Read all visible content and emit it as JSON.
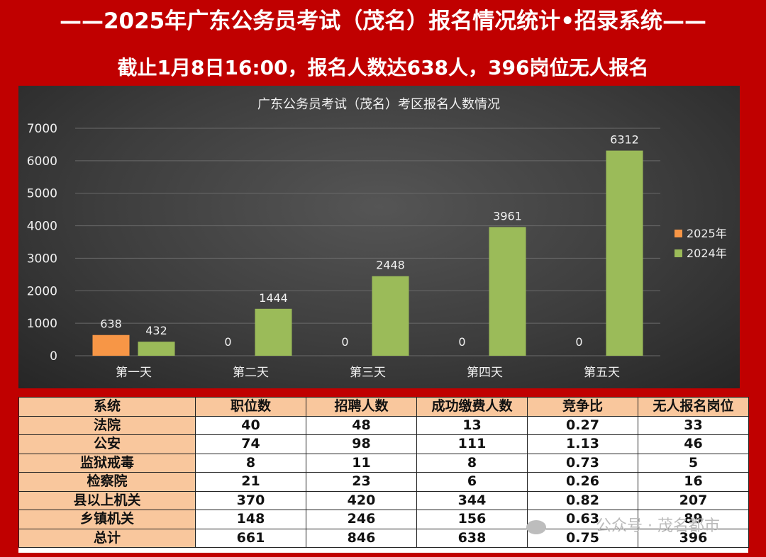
{
  "header": {
    "title": "——2025年广东公务员考试（茂名）报名情况统计•招录系统——",
    "subtitle": "截止1月8日16:00，报名人数达638人，396岗位无人报名"
  },
  "chart_data": {
    "type": "bar",
    "title": "广东公务员考试（茂名）考区报名人数情况",
    "categories": [
      "第一天",
      "第二天",
      "第三天",
      "第四天",
      "第五天"
    ],
    "series": [
      {
        "name": "2025年",
        "values": [
          638,
          0,
          0,
          0,
          0
        ],
        "color": "#f79646"
      },
      {
        "name": "2024年",
        "values": [
          432,
          1444,
          2448,
          3961,
          6312
        ],
        "color": "#9bbb59"
      }
    ],
    "ylim": [
      0,
      7000
    ],
    "yticks": [
      0,
      1000,
      2000,
      3000,
      4000,
      5000,
      6000,
      7000
    ],
    "grid": true,
    "legend": "right"
  },
  "table": {
    "headers": [
      "系统",
      "职位数",
      "招聘人数",
      "成功缴费人数",
      "竞争比",
      "无人报名岗位"
    ],
    "rows": [
      [
        "法院",
        "40",
        "48",
        "13",
        "0.27",
        "33"
      ],
      [
        "公安",
        "74",
        "98",
        "111",
        "1.13",
        "46"
      ],
      [
        "监狱戒毒",
        "8",
        "11",
        "8",
        "0.73",
        "5"
      ],
      [
        "检察院",
        "21",
        "23",
        "6",
        "0.26",
        "16"
      ],
      [
        "县以上机关",
        "370",
        "420",
        "344",
        "0.82",
        "207"
      ],
      [
        "乡镇机关",
        "148",
        "246",
        "156",
        "0.63",
        "89"
      ],
      [
        "总计",
        "661",
        "846",
        "638",
        "0.75",
        "396"
      ]
    ]
  },
  "watermark": {
    "text": "公众号 · 茂名都市",
    "icon": "wechat-icon"
  }
}
